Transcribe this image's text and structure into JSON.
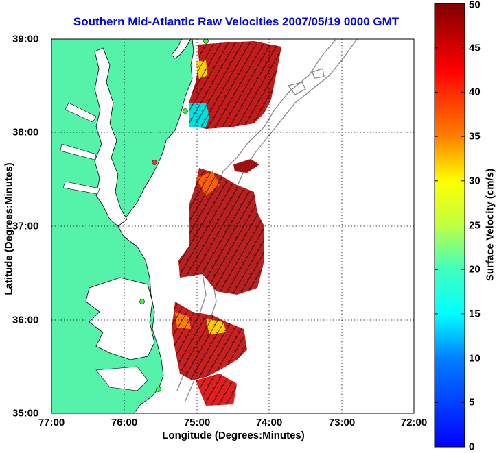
{
  "title": "Southern Mid-Atlantic Raw Velocities 2007/05/19 0000 GMT",
  "xaxis": {
    "label": "Longitude (Degrees:Minutes)",
    "ticks": [
      "77:00",
      "76:00",
      "75:00",
      "74:00",
      "73:00",
      "72:00"
    ]
  },
  "yaxis": {
    "label": "Latitude (Degrees:Minutes)",
    "ticks": [
      "39:00",
      "38:00",
      "37:00",
      "36:00",
      "35:00"
    ]
  },
  "colorbar": {
    "label": "Surface Velocity (cm/s)",
    "ticks": [
      "0",
      "5",
      "10",
      "15",
      "20",
      "25",
      "30",
      "35",
      "40",
      "45",
      "50"
    ],
    "min": 0,
    "max": 50
  },
  "colors": {
    "land": "#55f2aa",
    "title": "#0000ff"
  },
  "extent": {
    "lon_west": 77,
    "lon_east": 72,
    "lat_south": 35,
    "lat_north": 39
  }
}
